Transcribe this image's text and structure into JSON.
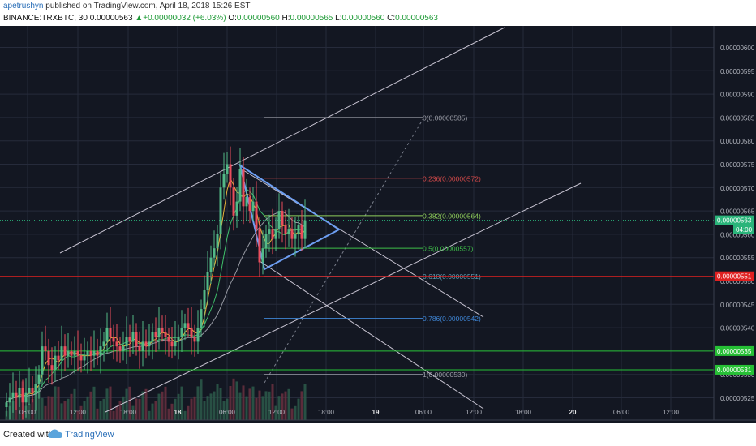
{
  "header": {
    "author": "apetrushyn",
    "published_text": "published on TradingView.com, April 18, 2018 15:26 EST",
    "symbol": "BINANCE:TRXBTC, 30",
    "last": "0.00000563",
    "change_arrow": "▲",
    "change": "+0.00000032 (+6.03%)",
    "ohlc_o_label": "O:",
    "ohlc_o": "0.00000560",
    "ohlc_h_label": "H:",
    "ohlc_h": "0.00000565",
    "ohlc_l_label": "L:",
    "ohlc_l": "0.00000560",
    "ohlc_c_label": "C:",
    "ohlc_c": "0.00000563"
  },
  "footer": {
    "created_with": "Created with",
    "brand": "TradingView"
  },
  "colors": {
    "background": "#131722",
    "grid": "#262b3b",
    "up": "#53b987",
    "down": "#eb4d5c",
    "trend_line": "#c7c3d1",
    "triangle": "#6d9ef2",
    "fib_236": "#d44a4a",
    "fib_382": "#8fce5b",
    "fib_5": "#3fbf4a",
    "fib_618": "#5d9fb4",
    "fib_786": "#3f86d6",
    "support": "#26c035",
    "resistance": "#e02020",
    "last_price": "#2ab47a"
  },
  "chart_data": {
    "type": "candlestick",
    "ylim": [
      5.21e-06,
      6.03e-06
    ],
    "x_ticks": [
      "06:00",
      "12:00",
      "18:00",
      "18",
      "06:00",
      "12:00",
      "18:00",
      "19",
      "06:00",
      "12:00",
      "18:00",
      "20",
      "06:00",
      "12:00"
    ],
    "y_ticks": [
      "0.00000600",
      "0.00000595",
      "0.00000590",
      "0.00000585",
      "0.00000580",
      "0.00000575",
      "0.00000570",
      "0.00000565",
      "0.00000560",
      "0.00000555",
      "0.00000550",
      "0.00000545",
      "0.00000540",
      "0.00000535",
      "0.00000530",
      "0.00000525"
    ],
    "y_tick_values": [
      6.0,
      5.95,
      5.9,
      5.85,
      5.8,
      5.75,
      5.7,
      5.65,
      5.6,
      5.55,
      5.5,
      5.45,
      5.4,
      5.35,
      5.3,
      5.25
    ],
    "price_scale": "1e-6",
    "candles_close": [
      5.24,
      5.25,
      5.26,
      5.25,
      5.27,
      5.24,
      5.26,
      5.27,
      5.26,
      5.28,
      5.3,
      5.36,
      5.35,
      5.32,
      5.31,
      5.34,
      5.33,
      5.36,
      5.34,
      5.35,
      5.34,
      5.35,
      5.34,
      5.33,
      5.34,
      5.35,
      5.34,
      5.35,
      5.34,
      5.36,
      5.37,
      5.4,
      5.38,
      5.37,
      5.36,
      5.35,
      5.36,
      5.38,
      5.37,
      5.39,
      5.36,
      5.35,
      5.37,
      5.36,
      5.37,
      5.39,
      5.38,
      5.4,
      5.39,
      5.38,
      5.37,
      5.36,
      5.37,
      5.38,
      5.4,
      5.41,
      5.4,
      5.38,
      5.37,
      5.4,
      5.44,
      5.48,
      5.52,
      5.55,
      5.57,
      5.6,
      5.7,
      5.73,
      5.75,
      5.7,
      5.64,
      5.67,
      5.74,
      5.66,
      5.68,
      5.65,
      5.67,
      5.61,
      5.54,
      5.57,
      5.6,
      5.61,
      5.59,
      5.61,
      5.65,
      5.62,
      5.6,
      5.61,
      5.59,
      5.6,
      5.62,
      5.59,
      5.63
    ],
    "ma_fast": "yellow",
    "ma_slow": "gray",
    "fib_levels": [
      {
        "ratio": "0",
        "price": "0.00000585",
        "label": "0(0.00000585)"
      },
      {
        "ratio": "0.236",
        "price": "0.00000572",
        "label": "0.236(0.00000572)"
      },
      {
        "ratio": "0.382",
        "price": "0.00000564",
        "label": "0.382(0.00000564)"
      },
      {
        "ratio": "0.5",
        "price": "0.00000557",
        "label": "0.5(0.00000557)"
      },
      {
        "ratio": "0.618",
        "price": "0.00000551",
        "label": "0.618(0.00000551)"
      },
      {
        "ratio": "0.786",
        "price": "0.00000542",
        "label": "0.786(0.00000542)"
      },
      {
        "ratio": "1",
        "price": "0.00000530",
        "label": "1(0.00000530)"
      }
    ],
    "horizontal_levels": [
      {
        "price": "0.00000551",
        "label": "0.00000551",
        "kind": "resistance"
      },
      {
        "price": "0.00000535",
        "label": "0.00000535",
        "kind": "support"
      },
      {
        "price": "0.00000531",
        "label": "0.00000531",
        "kind": "support"
      }
    ],
    "last_price": {
      "price": "0.00000563",
      "label": "0.00000563",
      "countdown": "04:00"
    }
  }
}
